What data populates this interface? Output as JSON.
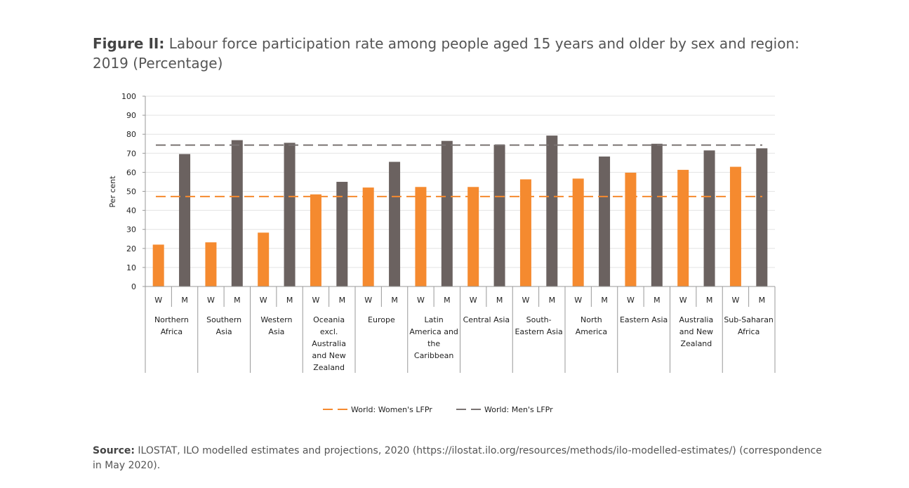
{
  "title": {
    "bold": "Figure II:",
    "text": "Labour force participation rate among people aged 15 years and older by sex and region: 2019 (Percentage)"
  },
  "source": {
    "bold": "Source:",
    "text": "ILOSTAT, ILO modelled estimates and projections, 2020 (https://ilostat.ilo.org/resources/methods/ilo-modelled-estimates/) (correspondence in May 2020)."
  },
  "colors": {
    "women": "#f58a2f",
    "men": "#6b6260",
    "grid": "#e3e3e3",
    "axis": "#999999"
  },
  "chart_data": {
    "type": "bar",
    "ylabel": "Per cent",
    "ylim": [
      0,
      100
    ],
    "yticks": [
      0,
      10,
      20,
      30,
      40,
      50,
      60,
      70,
      80,
      90,
      100
    ],
    "grid": true,
    "legend_position": "bottom",
    "sub_labels": [
      "W",
      "M"
    ],
    "categories": [
      [
        "Northern",
        "Africa"
      ],
      [
        "Southern",
        "Asia"
      ],
      [
        "Western",
        "Asia"
      ],
      [
        "Oceania",
        "excl.",
        "Australia",
        "and New",
        "Zealand"
      ],
      [
        "Europe"
      ],
      [
        "Latin",
        "America and",
        "the",
        "Caribbean"
      ],
      [
        "Central Asia"
      ],
      [
        "South-",
        "Eastern Asia"
      ],
      [
        "North",
        "America"
      ],
      [
        "Eastern Asia"
      ],
      [
        "Australia",
        "and New",
        "Zealand"
      ],
      [
        "Sub-Saharan",
        "Africa"
      ]
    ],
    "series": [
      {
        "values": [
          22,
          23.2,
          28.3,
          48.4,
          52,
          52.3,
          52.3,
          56.3,
          56.7,
          59.8,
          61.3,
          62.9
        ]
      },
      {
        "values": [
          69.6,
          76.9,
          75.5,
          55,
          65.5,
          76.5,
          74.5,
          79.3,
          68.3,
          75,
          71.5,
          72.6
        ]
      }
    ],
    "reference_lines": [
      {
        "name": "World: Women's LFPr",
        "value": 47.3
      },
      {
        "name": "World: Men's LFPr",
        "value": 74.3
      }
    ]
  }
}
